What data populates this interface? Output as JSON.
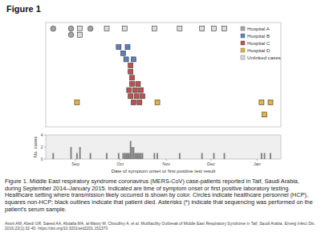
{
  "chart_data": [
    {
      "type": "scatter",
      "title": "Figure 1",
      "annotations": [
        "Figure 1. Middle East respiratory syndrome coronavirus (MERS-CoV) case-patients reported in Taif, Saudi Arabia, during September 2014–January 2015. Indicated are time of symptom onset or first positive laboratory testing. Healthcare setting where transmission likely occurred is shown by color. Circles indicate healthcare personnel (HCP), squares non-HCP; black outlines indicate that patient died. Asterisks (*) indicate that sequencing was performed on the patient's serum sample.",
        "Assiri AM, Abedi GR, Saeed AA, Abdalla MA, al-Masry M, Choudhry A, et al. Multifacility Outbreak of Middle East Respiratory Syndrome in Taif, Saudi Arabia. Emerg Infect Dis. 2016;22(1):32-40. https://doi.org/10.3201/eid2201.151370"
      ],
      "xlim": [
        -5,
        153
      ],
      "ylim": [
        0,
        17
      ],
      "tick_labels": false,
      "grid": false,
      "legend": "top-right",
      "series": [
        {
          "name": "Hospital A",
          "color": "#a6a6a6",
          "marker": "circle",
          "x": [
            0,
            12,
            25,
            12
          ],
          "values": [
            16,
            16,
            16,
            15
          ]
        },
        {
          "name": "Hospital B",
          "color": "#5b7fc4",
          "marker": "square",
          "x": [
            44,
            50,
            47,
            49,
            54
          ],
          "values": [
            13,
            13,
            12,
            11,
            11
          ]
        },
        {
          "name": "Hospital C",
          "color": "#c0504d",
          "marker": "square",
          "x": [
            52,
            52,
            53,
            53,
            57,
            51,
            55,
            59,
            52,
            56,
            60,
            54,
            58
          ],
          "values": [
            10,
            9,
            8,
            7,
            7,
            6,
            6,
            6,
            5,
            5,
            5,
            4,
            4
          ]
        },
        {
          "name": "Hospital D",
          "color": "#e6b43c",
          "marker": "square",
          "x": [
            16,
            70,
            140,
            146,
            142
          ],
          "values": [
            4,
            4,
            4,
            4,
            2
          ]
        },
        {
          "name": "Unlinked cases",
          "color": "#dcdcdc",
          "marker": "square",
          "x": [
            18,
            36,
            48,
            68,
            85,
            100,
            108,
            115,
            18
          ],
          "values": [
            16,
            16,
            16,
            16,
            16,
            16,
            16,
            16,
            15
          ]
        }
      ]
    },
    {
      "type": "bar",
      "xlabel": "Date of symptom onset or first positive test result",
      "ylabel": "No. cases",
      "x": [
        0,
        12,
        16,
        18,
        25,
        36,
        44,
        47,
        48,
        49,
        50,
        51,
        52,
        53,
        54,
        55,
        56,
        57,
        58,
        59,
        60,
        68,
        70,
        85,
        100,
        108,
        115,
        140,
        142,
        146
      ],
      "values": [
        1,
        2,
        1,
        2,
        1,
        1,
        1,
        1,
        1,
        1,
        1,
        1,
        3,
        2,
        2,
        1,
        1,
        1,
        1,
        1,
        1,
        1,
        1,
        1,
        1,
        1,
        1,
        1,
        1,
        1
      ],
      "color": "#7f7f7f",
      "xlim": [
        -5,
        153
      ],
      "ylim": [
        0,
        4
      ],
      "yticks": [
        0,
        2,
        4
      ],
      "xticks": [
        {
          "value": 15,
          "label": "Sep"
        },
        {
          "value": 45,
          "label": "Oct"
        },
        {
          "value": 76,
          "label": "Nov"
        },
        {
          "value": 106,
          "label": "Dec"
        },
        {
          "value": 137,
          "label": "Jan"
        }
      ],
      "grid": false
    }
  ]
}
